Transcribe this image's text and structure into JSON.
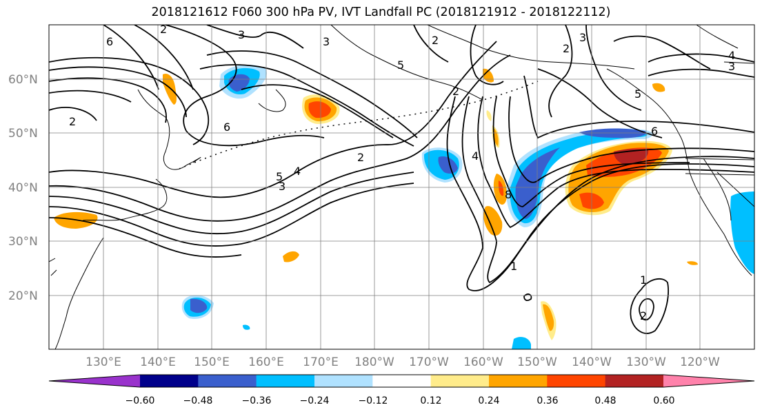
{
  "title": "2018121612 F060 300 hPa PV, IVT Landfall PC (2018121912 - 2018122112)",
  "latitude_labels": [
    "60°N",
    "50°N",
    "40°N",
    "30°N",
    "20°N"
  ],
  "longitude_labels": [
    "130°E",
    "140°E",
    "150°E",
    "160°E",
    "170°E",
    "180°W",
    "170°W",
    "160°W",
    "150°W",
    "140°W",
    "130°W",
    "120°W"
  ],
  "contour_labels": [
    "3",
    "3",
    "2",
    "6",
    "2",
    "2",
    "6",
    "5",
    "4",
    "5",
    "3",
    "2",
    "4",
    "8",
    "1",
    "1",
    "2",
    "5",
    "6",
    "4",
    "3",
    "3",
    "2",
    "2"
  ],
  "colorbar": {
    "colors": [
      "#9932cc",
      "#00008b",
      "#3a5fcd",
      "#00bfff",
      "#b0e2ff",
      "#ffffff",
      "#ffec8b",
      "#ffa500",
      "#ff4500",
      "#b22222",
      "#ff82ab"
    ],
    "tick_labels": [
      "−0.60",
      "−0.48",
      "−0.36",
      "−0.24",
      "−0.12",
      "0.12",
      "0.24",
      "0.36",
      "0.48",
      "0.60"
    ]
  }
}
